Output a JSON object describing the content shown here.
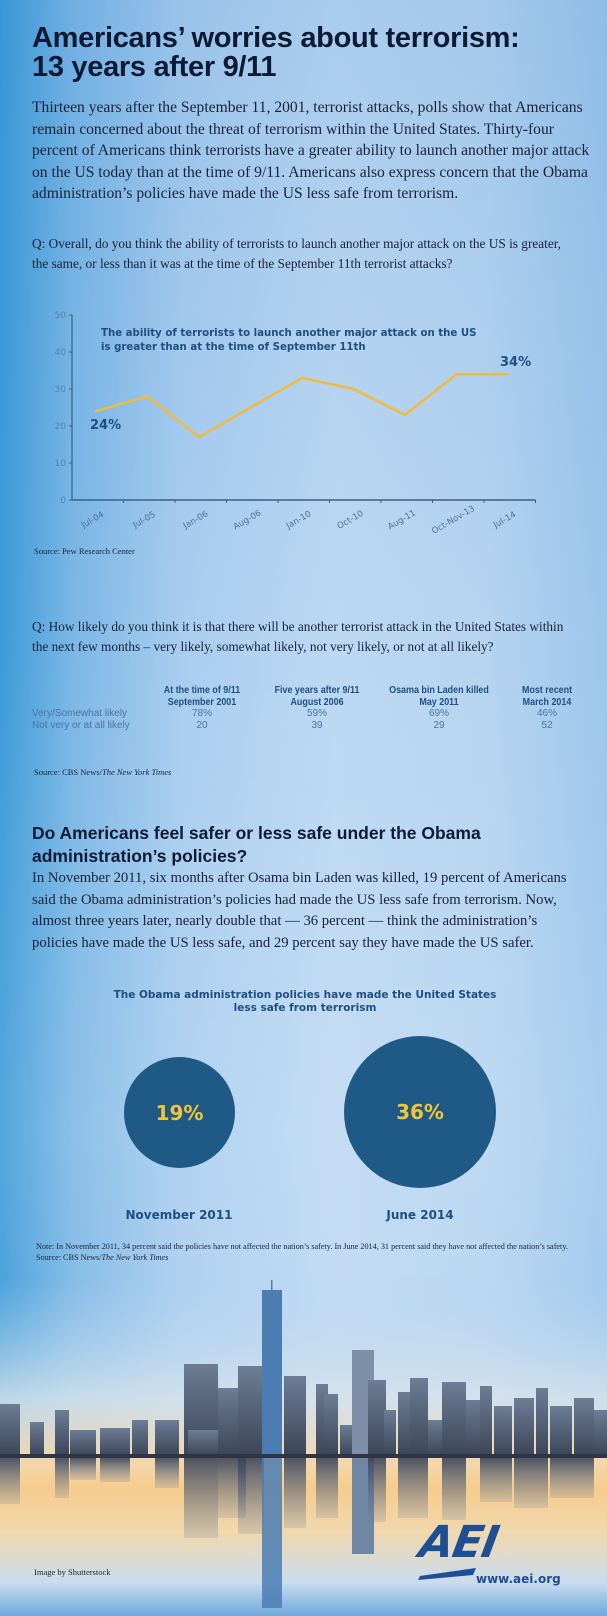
{
  "header": {
    "title_line1": "Americans’ worries about terrorism:",
    "title_line2": "13 years after 9/11",
    "intro": "Thirteen years after the September 11, 2001, terrorist attacks, polls show that Americans remain concerned about the threat of terrorism within the United States. Thirty-four percent of Americans think terrorists have a greater ability to launch another major attack on the US today than at the time of 9/11. Americans also express concern that the Obama administration’s policies have made the US less safe from terrorism."
  },
  "question1": "Q: Overall, do you think the ability of terrorists to launch another major attack on the US is greater, the same, or less than it was at the time of the September 11th terrorist attacks?",
  "chart_data": [
    {
      "type": "line",
      "title": "The ability of terrorists to launch another major attack on the US is greater than at the time of September 11th",
      "title_line1": "The ability of terrorists to launch another major attack on the US",
      "title_line2": "is greater than at the time of September 11th",
      "categories": [
        "Jul-04",
        "Jul-05",
        "Jan-06",
        "Aug-06",
        "Jan-10",
        "Oct-10",
        "Aug-11",
        "Oct-Nov-13",
        "Jul-14"
      ],
      "values": [
        24,
        28,
        17,
        25,
        33,
        30,
        23,
        34,
        34
      ],
      "yticks": [
        0,
        10,
        20,
        30,
        40,
        50
      ],
      "ylim": [
        0,
        50
      ],
      "xlabel": "",
      "ylabel": "",
      "grid": false,
      "annotations": [
        {
          "category": "Jul-04",
          "label": "24%"
        },
        {
          "category": "Jul-14",
          "label": "34%"
        }
      ],
      "line_color": "#f0bb3c",
      "source": "Source: Pew Research Center"
    },
    {
      "type": "table",
      "question": "Q: How likely do you think it is that there will be another terrorist attack in the United States within the next few months – very likely, somewhat likely, not very likely, or not at all likely?",
      "columns": [
        {
          "line1": "At the time of 9/11",
          "line2": "September 2001"
        },
        {
          "line1": "Five years after 9/11",
          "line2": "August 2006"
        },
        {
          "line1": "Osama bin Laden killed",
          "line2": "May 2011"
        },
        {
          "line1": "Most recent",
          "line2": "March 2014"
        }
      ],
      "rows": [
        {
          "label": "Very/Somewhat likely",
          "values": [
            "78%",
            "59%",
            "69%",
            "46%"
          ]
        },
        {
          "label": "Not very or at all likely",
          "values": [
            "20",
            "39",
            "29",
            "52"
          ]
        }
      ],
      "source_prefix": "Source: CBS News/",
      "source_italic": "The New York Times"
    },
    {
      "type": "bubble",
      "title_line1": "The Obama administration policies have made the United States",
      "title_line2": "less safe from terrorism",
      "categories": [
        "November 2011",
        "June 2014"
      ],
      "values": [
        19,
        36
      ],
      "labels": [
        "19%",
        "36%"
      ],
      "bubble_color": "#1f5a87",
      "label_color": "#f3c534"
    }
  ],
  "section2": {
    "heading": "Do Americans feel safer or less safe under the Obama administration’s policies?",
    "body": "In November 2011, six months after Osama bin Laden was killed, 19 percent of Americans said the Obama administration’s policies had made the US less safe from terrorism. Now, almost three years later, nearly double that — 36 percent — think the administration’s policies have made the US less safe, and 29 percent say they have made the US safer."
  },
  "note": {
    "text": "Note: In November 2011, 34 percent said the policies have not affected the nation’s safety. In June 2014, 31 percent said they have not affected the nation’s safety.",
    "source_prefix": "Source: CBS News/",
    "source_italic": "The New York Times"
  },
  "footer": {
    "credit": "Image by Shutterstock",
    "logo_text": "AEI",
    "url": "www.aei.org"
  }
}
